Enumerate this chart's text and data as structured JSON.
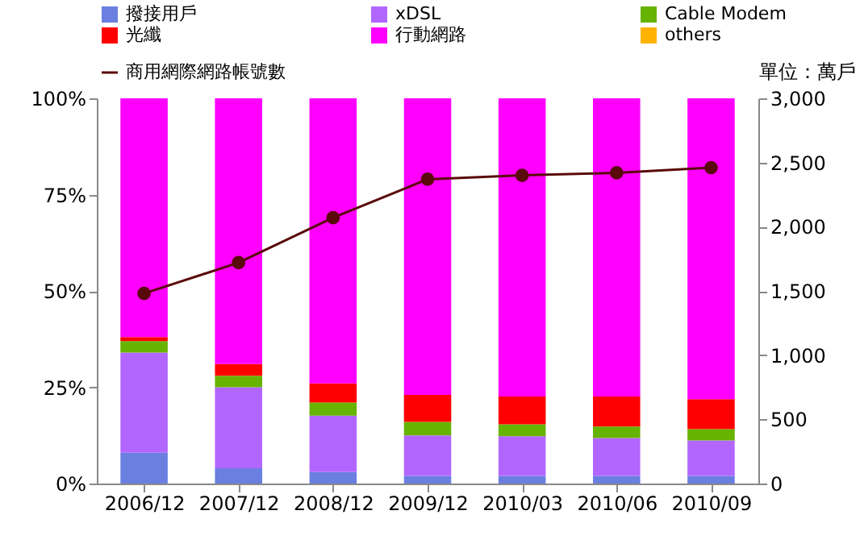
{
  "chart_data": {
    "type": "bar",
    "stacked": true,
    "y2label": "單位：萬戶",
    "categories": [
      "2006/12",
      "2007/12",
      "2008/12",
      "2009/12",
      "2010/03",
      "2010/06",
      "2010/09"
    ],
    "series": [
      {
        "name": "撥接用戶",
        "color": "#6a7fe0",
        "values": [
          8,
          4,
          3,
          2,
          2,
          2,
          2
        ]
      },
      {
        "name": "xDSL",
        "color": "#b366ff",
        "values": [
          26,
          21,
          14.6,
          10.5,
          10.3,
          9.8,
          9.2
        ]
      },
      {
        "name": "Cable Modem",
        "color": "#66b300",
        "values": [
          3,
          3,
          3.4,
          3.5,
          3.1,
          3,
          2.9
        ]
      },
      {
        "name": "光纖",
        "color": "#ff0000",
        "values": [
          1,
          3,
          5,
          7,
          7.2,
          7.8,
          7.8
        ]
      },
      {
        "name": "行動網路",
        "color": "#ff00ff",
        "values": [
          62,
          69,
          74,
          77,
          77.4,
          77.4,
          78.1
        ]
      },
      {
        "name": "others",
        "color": "#ffb300",
        "values": [
          0,
          0,
          0,
          0,
          0,
          0,
          0
        ]
      },
      {
        "name": "商用網際網路帳號數",
        "type": "line",
        "axis": "y2",
        "color": "#5a0a0a",
        "marker": "circle",
        "values": [
          1480,
          1720,
          2070,
          2370,
          2400,
          2420,
          2460
        ]
      }
    ],
    "ylim": [
      0,
      100
    ],
    "yticks": [
      {
        "value": 0,
        "label": "0%"
      },
      {
        "value": 25,
        "label": "25%"
      },
      {
        "value": 50,
        "label": "50%"
      },
      {
        "value": 75,
        "label": "75%"
      },
      {
        "value": 100,
        "label": "100%"
      }
    ],
    "y2lim": [
      0,
      3000
    ],
    "y2ticks": [
      0,
      500,
      {
        "value": 1000,
        "label": "1,000"
      },
      {
        "value": 1500,
        "label": "1,500"
      },
      {
        "value": 2000,
        "label": "2,000"
      },
      {
        "value": 2500,
        "label": "2,500"
      },
      {
        "value": 3000,
        "label": "3,000"
      }
    ],
    "grid": false,
    "legend": "top"
  }
}
